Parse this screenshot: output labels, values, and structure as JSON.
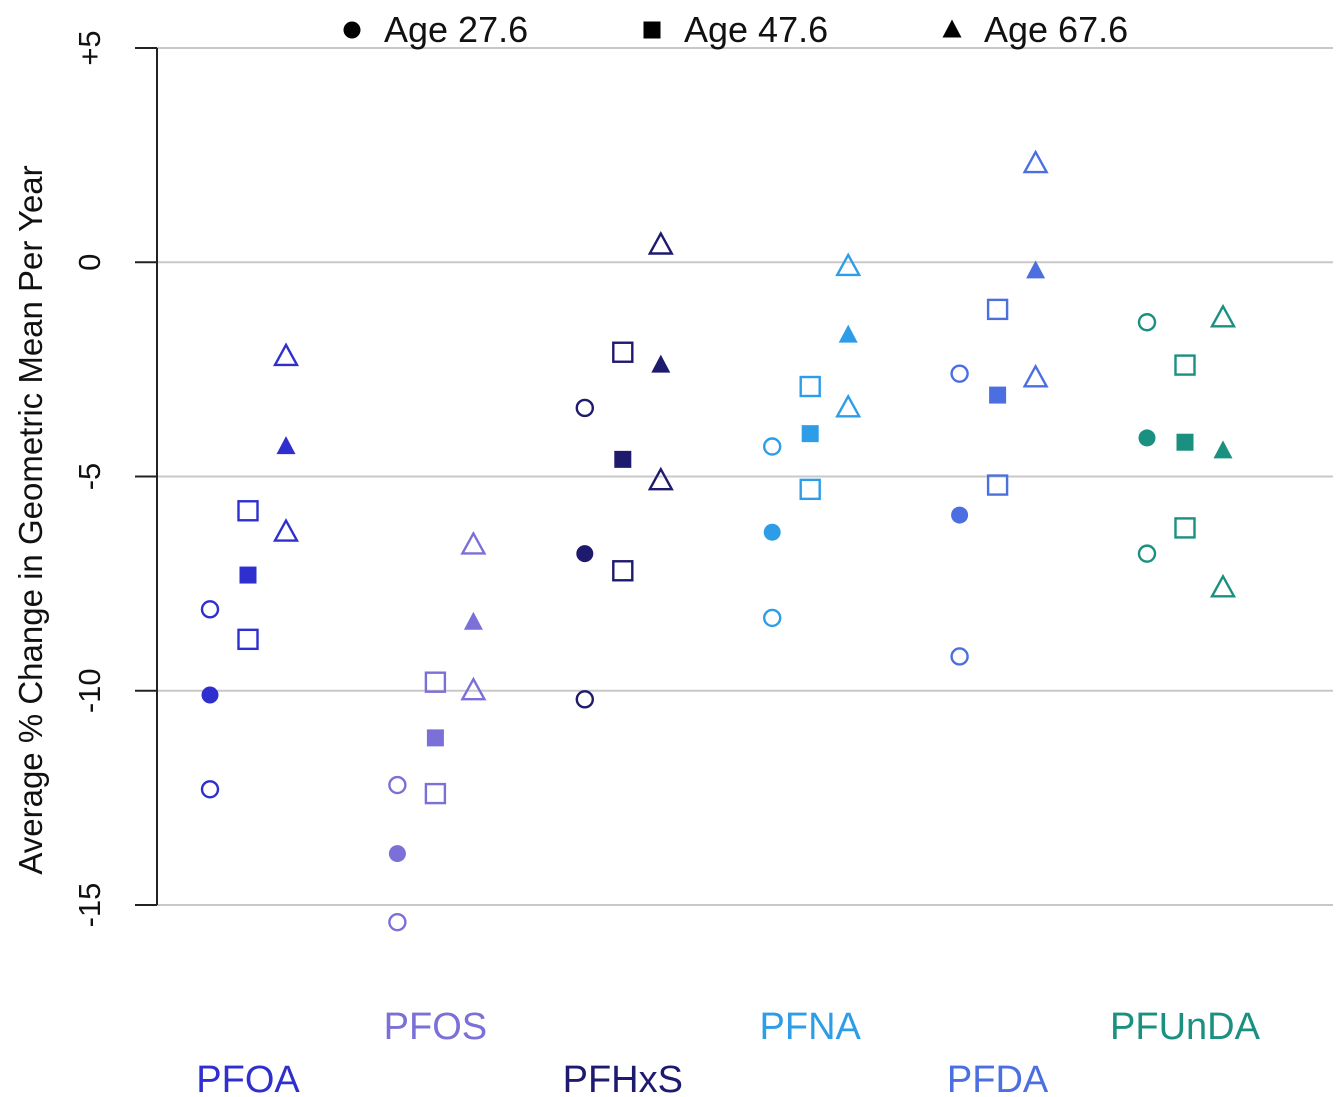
{
  "chart_data": {
    "type": "scatter",
    "title": "",
    "xlabel": "",
    "ylabel": "Average % Change in Geometric Mean Per Year",
    "ylim": [
      -15,
      5
    ],
    "yticks": [
      {
        "value": 5,
        "label": "+5"
      },
      {
        "value": 0,
        "label": "0"
      },
      {
        "value": -5,
        "label": "-5"
      },
      {
        "value": -10,
        "label": "-10"
      },
      {
        "value": -15,
        "label": "-15"
      }
    ],
    "grid": "horizontal",
    "legend_position": "top",
    "legend": [
      {
        "name": "Age 27.6",
        "marker": "circle"
      },
      {
        "name": "Age 47.6",
        "marker": "square"
      },
      {
        "name": "Age 67.6",
        "marker": "triangle"
      }
    ],
    "categories": [
      {
        "name": "PFOA",
        "color": "#2f2fd0",
        "values": [
          {
            "age": "Age 27.6",
            "marker": "circle",
            "est": -10.1,
            "lo": -12.3,
            "hi": -8.1
          },
          {
            "age": "Age 47.6",
            "marker": "square",
            "est": -7.3,
            "lo": -8.8,
            "hi": -5.8
          },
          {
            "age": "Age 67.6",
            "marker": "triangle",
            "est": -4.3,
            "lo": -6.3,
            "hi": -2.2
          }
        ]
      },
      {
        "name": "PFOS",
        "color": "#7b6fd8",
        "values": [
          {
            "age": "Age 27.6",
            "marker": "circle",
            "est": -13.8,
            "lo": -15.4,
            "hi": -12.2
          },
          {
            "age": "Age 47.6",
            "marker": "square",
            "est": -11.1,
            "lo": -12.4,
            "hi": -9.8
          },
          {
            "age": "Age 67.6",
            "marker": "triangle",
            "est": -8.4,
            "lo": -10.0,
            "hi": -6.6
          }
        ]
      },
      {
        "name": "PFHxS",
        "color": "#1e1a6e",
        "values": [
          {
            "age": "Age 27.6",
            "marker": "circle",
            "est": -6.8,
            "lo": -10.2,
            "hi": -3.4
          },
          {
            "age": "Age 47.6",
            "marker": "square",
            "est": -4.6,
            "lo": -7.2,
            "hi": -2.1
          },
          {
            "age": "Age 67.6",
            "marker": "triangle",
            "est": -2.4,
            "lo": -5.1,
            "hi": 0.4
          }
        ]
      },
      {
        "name": "PFNA",
        "color": "#2e9de8",
        "values": [
          {
            "age": "Age 27.6",
            "marker": "circle",
            "est": -6.3,
            "lo": -8.3,
            "hi": -4.3
          },
          {
            "age": "Age 47.6",
            "marker": "square",
            "est": -4.0,
            "lo": -5.3,
            "hi": -2.9
          },
          {
            "age": "Age 67.6",
            "marker": "triangle",
            "est": -1.7,
            "lo": -3.4,
            "hi": -0.1
          }
        ]
      },
      {
        "name": "PFDA",
        "color": "#4b6fe0",
        "values": [
          {
            "age": "Age 27.6",
            "marker": "circle",
            "est": -5.9,
            "lo": -9.2,
            "hi": -2.6
          },
          {
            "age": "Age 47.6",
            "marker": "square",
            "est": -3.1,
            "lo": -5.2,
            "hi": -1.1
          },
          {
            "age": "Age 67.6",
            "marker": "triangle",
            "est": -0.2,
            "lo": -2.7,
            "hi": 2.3
          }
        ]
      },
      {
        "name": "PFUnDA",
        "color": "#1a9080",
        "values": [
          {
            "age": "Age 27.6",
            "marker": "circle",
            "est": -4.1,
            "lo": -6.8,
            "hi": -1.4
          },
          {
            "age": "Age 47.6",
            "marker": "square",
            "est": -4.2,
            "lo": -6.2,
            "hi": -2.4
          },
          {
            "age": "Age 67.6",
            "marker": "triangle",
            "est": -4.4,
            "lo": -7.6,
            "hi": -1.3
          }
        ]
      }
    ]
  }
}
